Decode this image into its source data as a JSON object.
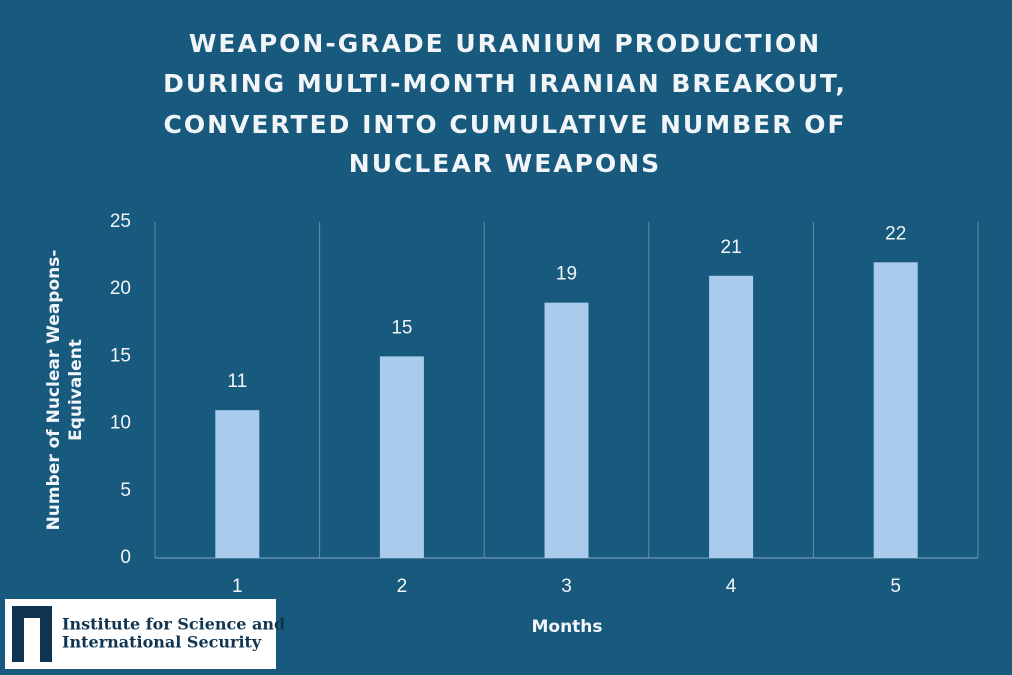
{
  "chart_data": {
    "type": "bar",
    "title": [
      "WEAPON-GRADE URANIUM PRODUCTION",
      "DURING MULTI-MONTH IRANIAN BREAKOUT,",
      "CONVERTED INTO CUMULATIVE NUMBER OF",
      "NUCLEAR WEAPONS"
    ],
    "x_label": "Months",
    "y_label": [
      "Number of Nuclear Weapons-",
      "Equivalent"
    ],
    "categories": [
      "1",
      "2",
      "3",
      "4",
      "5"
    ],
    "values": [
      11,
      15,
      19,
      21,
      22
    ],
    "color": "#a9cbec",
    "ylim": [
      0,
      25
    ],
    "yticks": [
      0,
      5,
      10,
      15,
      20,
      25
    ],
    "source": [
      "Institute for Science and",
      "International Security"
    ]
  }
}
